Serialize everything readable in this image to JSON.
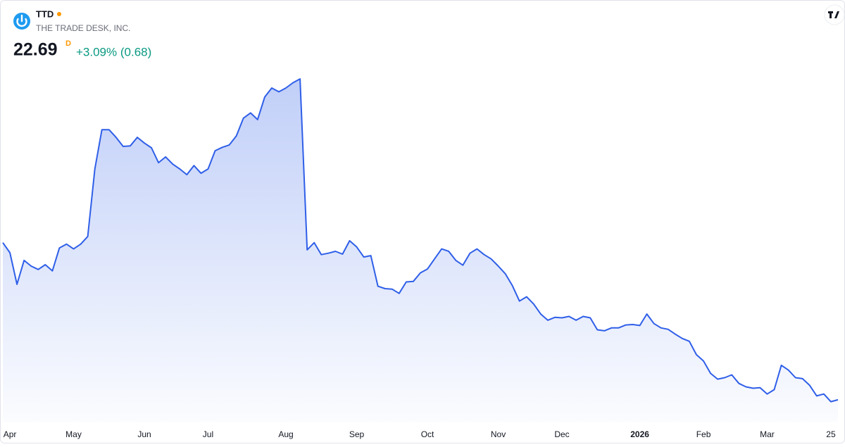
{
  "header": {
    "symbol": "TTD",
    "company": "THE TRADE DESK, INC.",
    "price": 22.69,
    "price_flag": "D",
    "change": "+3.09% (0.68)"
  },
  "chart_data": {
    "type": "area",
    "color": "#2f5fe8",
    "values": [
      55.5,
      53.4,
      46.8,
      51.8,
      50.6,
      49.9,
      50.9,
      49.6,
      54.4,
      55.2,
      54.2,
      55.2,
      56.8,
      70.9,
      79.1,
      79.1,
      77.5,
      75.6,
      75.7,
      77.5,
      76.3,
      75.3,
      72.2,
      73.4,
      71.9,
      70.9,
      69.7,
      71.6,
      70.0,
      70.9,
      74.7,
      75.4,
      75.9,
      77.8,
      81.5,
      82.6,
      81.2,
      85.9,
      87.8,
      87.0,
      87.8,
      88.9,
      89.7,
      54.0,
      55.5,
      53.0,
      53.3,
      53.7,
      53.1,
      55.9,
      54.6,
      52.5,
      52.8,
      46.4,
      45.9,
      45.8,
      44.9,
      47.3,
      47.4,
      49.2,
      50.0,
      52.1,
      54.2,
      53.7,
      51.8,
      50.8,
      53.3,
      54.2,
      53.0,
      52.1,
      50.6,
      49.0,
      46.5,
      43.3,
      44.2,
      42.7,
      40.6,
      39.3,
      39.9,
      39.8,
      40.1,
      39.3,
      40.1,
      39.8,
      37.3,
      37.1,
      37.7,
      37.7,
      38.3,
      38.4,
      38.2,
      40.6,
      38.6,
      37.7,
      37.4,
      36.4,
      35.5,
      34.9,
      32.1,
      30.8,
      28.2,
      27.0,
      27.3,
      27.9,
      26.1,
      25.4,
      25.1,
      25.2,
      23.9,
      24.8,
      29.9,
      28.9,
      27.3,
      27.1,
      25.7,
      23.5,
      23.9,
      22.3,
      22.69
    ],
    "xlim": [
      0,
      118
    ],
    "ylim": [
      19,
      100
    ],
    "xticks": [
      {
        "value": 1,
        "label": "Apr"
      },
      {
        "value": 10,
        "label": "May"
      },
      {
        "value": 20,
        "label": "Jun"
      },
      {
        "value": 29,
        "label": "Jul"
      },
      {
        "value": 40,
        "label": "Aug"
      },
      {
        "value": 50,
        "label": "Sep"
      },
      {
        "value": 60,
        "label": "Oct"
      },
      {
        "value": 70,
        "label": "Nov"
      },
      {
        "value": 79,
        "label": "Dec"
      },
      {
        "value": 90,
        "label": "2026"
      },
      {
        "value": 99,
        "label": "Feb"
      },
      {
        "value": 108,
        "label": "Mar"
      },
      {
        "value": 117,
        "label": "25"
      }
    ]
  }
}
